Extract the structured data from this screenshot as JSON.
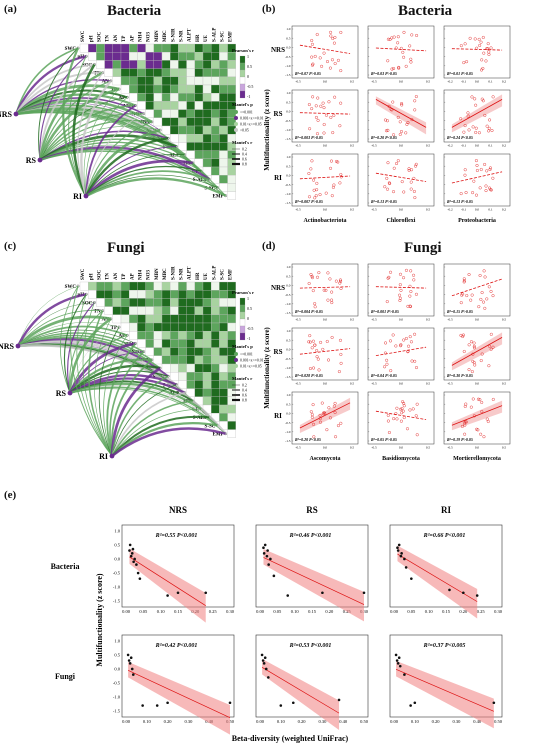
{
  "panels": {
    "a": {
      "label": "(a)",
      "title": "Bacteria"
    },
    "b": {
      "label": "(b)",
      "title": "Bacteria"
    },
    "c": {
      "label": "(c)",
      "title": "Fungi"
    },
    "d": {
      "label": "(d)",
      "title": "Fungi"
    },
    "e": {
      "label": "(e)"
    }
  },
  "matrix": {
    "variables": [
      "SWC",
      "pH",
      "SOC",
      "TN",
      "AN",
      "TP",
      "AP",
      "NH4",
      "NO3",
      "MBN",
      "MBC",
      "S-NIR",
      "S-NR",
      "ALPT",
      "HR",
      "UE",
      "S-ALP",
      "S-SC",
      "EMF"
    ],
    "groups": [
      "NRS",
      "RS",
      "RI"
    ],
    "legend": {
      "pearson_title": "Pearson's r",
      "pearson_ticks": [
        "1",
        "0.5",
        "0",
        "-0.5",
        "-1"
      ],
      "mantel_p_title": "Mantel's p",
      "mantel_p_items_a": [
        "<=0.001",
        "0.001<x<=0.01",
        "0.01<x<=0.05",
        ">0.05"
      ],
      "mantel_p_items_c": [
        "<=0.001",
        "0.001<x<=0.01",
        "0.01<x<=0.05"
      ],
      "mantel_r_title": "Mantel's r",
      "mantel_r_items": [
        "0.2",
        "0.4",
        "0.6",
        "0.8"
      ],
      "colors": {
        "dark_green": "#1f6b1f",
        "green": "#5da55d",
        "light_green": "#a8d3a0",
        "grey": "#c8c8c8",
        "purple": "#6b2c8f"
      }
    }
  },
  "panel_b": {
    "row_labels": [
      "NRS",
      "RS",
      "RI"
    ],
    "col_labels": [
      "Actinobacteriota",
      "Chloroflexi",
      "Proteobacteria"
    ],
    "ylabel": "Multifunctionality (z score)",
    "stats": [
      [
        "R²=0.07 P>0.05",
        "R²=0.03 P>0.05",
        "R²=0.01 P>0.05"
      ],
      [
        "R²=0.003 P>0.05",
        "R²=0.20 P<0.05",
        "R²=0.24 P<0.05"
      ],
      [
        "R²=0.007 P>0.05",
        "R²=0.13 P>0.05",
        "R²=0.13 P>0.05"
      ]
    ],
    "xticks": [
      [
        "-0.5",
        "0.0",
        "0.5"
      ],
      [
        "-0.5",
        "0.0",
        "0.5"
      ],
      [
        "-0.2",
        "-0.1",
        "0.0",
        "0.1",
        "0.2"
      ]
    ],
    "yticks": [
      "1.0",
      "0.5",
      "0.0",
      "-0.5",
      "-1.0",
      "-1.5"
    ]
  },
  "panel_d": {
    "row_labels": [
      "NRS",
      "RS",
      "RI"
    ],
    "col_labels": [
      "Ascomycota",
      "Basidiomycota",
      "Mortierellomycota"
    ],
    "ylabel": "Multifunctionality (z score)",
    "stats": [
      [
        "R²=0.004 P>0.05",
        "R²=0.001 P>0.05",
        "R²=0.15 P>0.05"
      ],
      [
        "R²=0.028 P>0.05",
        "R²=0.04 P>0.05",
        "R²=0.30 P<0.05"
      ],
      [
        "R²=0.20 P<0.05",
        "R²=0.05 P>0.05",
        "R²=0.19 P>0.05"
      ]
    ],
    "xticks": [
      [
        "-0.5",
        "0.0",
        "0.5"
      ],
      [
        "-0.5",
        "0.0",
        "0.5"
      ],
      [
        "-0.5",
        "0.0",
        "0.5"
      ]
    ],
    "yticks": [
      "1.0",
      "0.5",
      "0.0",
      "-0.5",
      "-1.0",
      "-1.5"
    ]
  },
  "panel_e": {
    "col_labels": [
      "NRS",
      "RS",
      "RI"
    ],
    "row_labels": [
      "Bacteria",
      "Fungi"
    ],
    "ylabel": "Multifunctionality (z score)",
    "xlabel": "Beta-diversity (weighted UniFrac)",
    "stats": [
      [
        "R²=0.55 P<0.001",
        "R²=0.46 P<0.001",
        "R²=0.66 P<0.001"
      ],
      [
        "R²=0.42 P<0.001",
        "R²=0.53 P<0.001",
        "R²=0.37 P<0.005"
      ]
    ],
    "xticks_bacteria": [
      "0.00",
      "0.05",
      "0.10",
      "0.15",
      "0.20",
      "0.25",
      "0.30"
    ],
    "xticks_fungi": [
      "0.00",
      "0.10",
      "0.20",
      "0.30",
      "0.40",
      "0.50"
    ],
    "yticks": [
      "1.0",
      "0.5",
      "0.0",
      "-0.5",
      "-1.0",
      "-1.5"
    ]
  },
  "chart_data": [
    {
      "type": "scatter",
      "panel": "e",
      "group": "Bacteria",
      "site": "NRS",
      "xlim": [
        0,
        0.3
      ],
      "ylim": [
        -1.6,
        1.1
      ],
      "x": [
        0.01,
        0.012,
        0.015,
        0.018,
        0.02,
        0.022,
        0.025,
        0.03,
        0.035,
        0.04,
        0.12,
        0.15,
        0.23
      ],
      "y": [
        0.3,
        0.5,
        0.1,
        0.2,
        0.35,
        -0.1,
        0.0,
        -0.2,
        -0.5,
        -0.7,
        -1.3,
        -1.2,
        -1.2
      ]
    },
    {
      "type": "scatter",
      "panel": "e",
      "group": "Bacteria",
      "site": "RS",
      "xlim": [
        0,
        0.3
      ],
      "ylim": [
        -1.6,
        1.1
      ],
      "x": [
        0.01,
        0.012,
        0.015,
        0.02,
        0.022,
        0.025,
        0.03,
        0.04,
        0.08,
        0.18,
        0.3
      ],
      "y": [
        0.4,
        0.2,
        0.5,
        0.1,
        0.3,
        -0.2,
        0.0,
        -0.6,
        -1.3,
        -1.2,
        -1.2
      ]
    },
    {
      "type": "scatter",
      "panel": "e",
      "group": "Bacteria",
      "site": "RI",
      "xlim": [
        0,
        0.3
      ],
      "ylim": [
        -1.6,
        1.1
      ],
      "x": [
        0.01,
        0.012,
        0.015,
        0.02,
        0.022,
        0.03,
        0.035,
        0.05,
        0.16,
        0.2,
        0.24
      ],
      "y": [
        0.4,
        0.3,
        0.5,
        0.1,
        0.2,
        0.0,
        -0.3,
        -0.7,
        -1.1,
        -1.2,
        -1.3
      ]
    },
    {
      "type": "scatter",
      "panel": "e",
      "group": "Fungi",
      "site": "NRS",
      "xlim": [
        0,
        0.5
      ],
      "ylim": [
        -1.6,
        1.1
      ],
      "x": [
        0.01,
        0.015,
        0.02,
        0.025,
        0.03,
        0.035,
        0.08,
        0.15,
        0.2,
        0.5
      ],
      "y": [
        0.5,
        0.3,
        0.2,
        0.4,
        0.0,
        -0.2,
        -1.3,
        -1.3,
        -1.2,
        -1.2
      ]
    },
    {
      "type": "scatter",
      "panel": "e",
      "group": "Fungi",
      "site": "RS",
      "xlim": [
        0,
        0.5
      ],
      "ylim": [
        -1.6,
        1.1
      ],
      "x": [
        0.01,
        0.015,
        0.02,
        0.025,
        0.03,
        0.04,
        0.1,
        0.16,
        0.38
      ],
      "y": [
        0.5,
        0.3,
        0.2,
        0.4,
        0.0,
        -0.3,
        -1.3,
        -1.2,
        -1.1
      ]
    },
    {
      "type": "scatter",
      "panel": "e",
      "group": "Fungi",
      "site": "RI",
      "xlim": [
        0,
        0.5
      ],
      "ylim": [
        -1.6,
        1.1
      ],
      "x": [
        0.01,
        0.015,
        0.02,
        0.025,
        0.03,
        0.05,
        0.08,
        0.1,
        0.48
      ],
      "y": [
        0.5,
        0.3,
        0.2,
        0.4,
        0.1,
        -0.2,
        -1.3,
        -1.2,
        -1.2
      ]
    }
  ]
}
